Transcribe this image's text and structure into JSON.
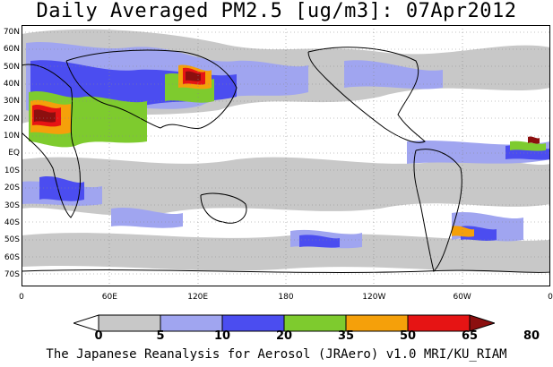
{
  "title": "Daily Averaged PM2.5 [ug/m3]: 07Apr2012",
  "map": {
    "y_axis_labels": [
      "70N",
      "60N",
      "50N",
      "40N",
      "30N",
      "20N",
      "10N",
      "EQ",
      "10S",
      "20S",
      "30S",
      "40S",
      "50S",
      "60S",
      "70S"
    ],
    "x_axis_labels": [
      "0",
      "60E",
      "120E",
      "180",
      "120W",
      "60W",
      "0"
    ]
  },
  "legend": {
    "levels": [
      "0",
      "5",
      "10",
      "20",
      "35",
      "50",
      "65",
      "80"
    ],
    "colors": [
      "#ffffff",
      "#c8c8c8",
      "#a0a5f0",
      "#4b4df0",
      "#7ecb2e",
      "#f5a00a",
      "#e61414",
      "#8c0f0f"
    ]
  },
  "footer": "The Japanese Reanalysis for Aerosol (JRAero) v1.0 MRI/KU_RIAM"
}
